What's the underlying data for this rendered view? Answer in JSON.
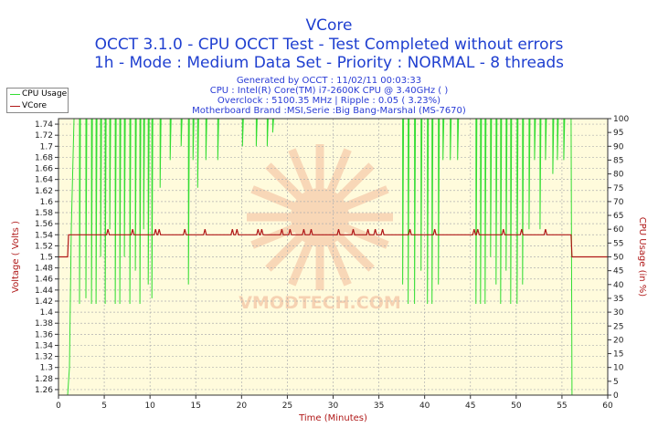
{
  "chart_data": {
    "type": "line",
    "title": "VCore",
    "subtitle_lines": [
      "OCCT 3.1.0 - CPU OCCT Test - Test Completed without errors",
      "1h - Mode : Medium Data Set - Priority : NORMAL - 8 threads"
    ],
    "info_lines": [
      "Generated by OCCT : 11/02/11 00:03:33",
      "CPU : Intel(R) Core(TM) i7-2600K CPU @ 3.40GHz (  )",
      "Overclock : 5100.35 MHz | Ripple : 0.05 ( 3.23%)",
      "Motherboard Brand :MSI,Serie :Big Bang-Marshal (MS-7670)"
    ],
    "xlabel": "Time (Minutes)",
    "ylabel_left": "Voltage ( Volts )",
    "ylabel_right": "CPU Usage (in %)",
    "xlim": [
      0,
      60
    ],
    "ylim_left": [
      1.25,
      1.75
    ],
    "ylim_right": [
      0,
      100
    ],
    "x_ticks": [
      "0",
      "5",
      "10",
      "15",
      "20",
      "25",
      "30",
      "35",
      "40",
      "45",
      "50",
      "55",
      "60"
    ],
    "y_ticks_left": [
      "1.26",
      "1.28",
      "1.3",
      "1.32",
      "1.34",
      "1.36",
      "1.38",
      "1.4",
      "1.42",
      "1.44",
      "1.46",
      "1.48",
      "1.5",
      "1.52",
      "1.54",
      "1.56",
      "1.58",
      "1.6",
      "1.62",
      "1.64",
      "1.66",
      "1.68",
      "1.7",
      "1.72",
      "1.74"
    ],
    "y_ticks_right": [
      "0",
      "5",
      "10",
      "15",
      "20",
      "25",
      "30",
      "35",
      "40",
      "45",
      "50",
      "55",
      "60",
      "65",
      "70",
      "75",
      "80",
      "85",
      "90",
      "95",
      "100"
    ],
    "grid": true,
    "legend_position": "top-left",
    "watermark": "VMODTECH.COM",
    "series": [
      {
        "name": "CPU Usage",
        "axis": "right",
        "color": "#33dd33",
        "baseline": 0,
        "x": [
          1.0,
          1.2,
          1.4,
          1.7
        ],
        "y": [
          0,
          10,
          60,
          100
        ],
        "full_load_from": 1.7,
        "full_load_until": 56.0,
        "idle_after": 0,
        "dips": [
          [
            2.3,
            33
          ],
          [
            3.0,
            35
          ],
          [
            3.6,
            33
          ],
          [
            4.1,
            33
          ],
          [
            4.6,
            50
          ],
          [
            5.1,
            33
          ],
          [
            5.6,
            60
          ],
          [
            6.2,
            33
          ],
          [
            6.7,
            33
          ],
          [
            7.2,
            50
          ],
          [
            7.8,
            33
          ],
          [
            8.4,
            45
          ],
          [
            8.9,
            33
          ],
          [
            9.3,
            60
          ],
          [
            9.8,
            40
          ],
          [
            10.2,
            35
          ],
          [
            11.1,
            75
          ],
          [
            12.2,
            85
          ],
          [
            13.4,
            90
          ],
          [
            14.2,
            40
          ],
          [
            14.7,
            85
          ],
          [
            15.2,
            75
          ],
          [
            16.1,
            85
          ],
          [
            17.4,
            85
          ],
          [
            20.1,
            90
          ],
          [
            21.6,
            90
          ],
          [
            22.8,
            90
          ],
          [
            23.4,
            95
          ],
          [
            37.6,
            40
          ],
          [
            38.2,
            33
          ],
          [
            38.9,
            33
          ],
          [
            39.6,
            45
          ],
          [
            40.3,
            33
          ],
          [
            40.8,
            33
          ],
          [
            41.5,
            40
          ],
          [
            42.0,
            85
          ],
          [
            42.8,
            85
          ],
          [
            43.6,
            85
          ],
          [
            45.6,
            33
          ],
          [
            46.1,
            33
          ],
          [
            46.6,
            33
          ],
          [
            47.2,
            50
          ],
          [
            47.8,
            40
          ],
          [
            48.3,
            33
          ],
          [
            48.9,
            45
          ],
          [
            49.4,
            33
          ],
          [
            50.1,
            33
          ],
          [
            50.7,
            40
          ],
          [
            51.4,
            60
          ],
          [
            52.0,
            85
          ],
          [
            52.6,
            60
          ],
          [
            53.2,
            85
          ],
          [
            54.0,
            80
          ],
          [
            54.5,
            85
          ],
          [
            55.2,
            85
          ]
        ]
      },
      {
        "name": "VCore",
        "axis": "left",
        "color": "#b01818",
        "x": [
          0,
          1.0,
          1.1,
          56.0,
          56.1,
          60
        ],
        "y": [
          1.5,
          1.5,
          1.54,
          1.54,
          1.5,
          1.5
        ],
        "spikes": [
          5.4,
          8.1,
          10.6,
          11.0,
          13.8,
          16.0,
          19.0,
          19.5,
          21.8,
          22.2,
          24.4,
          25.3,
          26.8,
          27.6,
          30.6,
          32.2,
          33.8,
          34.6,
          35.4,
          38.4,
          41.1,
          45.4,
          45.8,
          48.6,
          50.6,
          53.2
        ],
        "spike_value": 1.55
      }
    ]
  }
}
